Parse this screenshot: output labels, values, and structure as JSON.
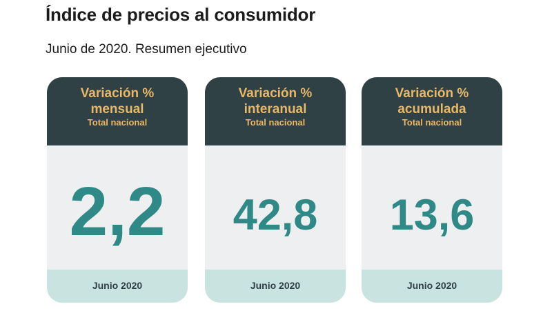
{
  "title": "Índice de precios al consumidor",
  "subtitle": "Junio de 2020. Resumen ejecutivo",
  "cards": [
    {
      "title_line1": "Variación %",
      "title_line2": "mensual",
      "scope": "Total nacional",
      "value": "2,2",
      "period": "Junio 2020"
    },
    {
      "title_line1": "Variación %",
      "title_line2": "interanual",
      "scope": "Total nacional",
      "value": "42,8",
      "period": "Junio 2020"
    },
    {
      "title_line1": "Variación %",
      "title_line2": "acumulada",
      "scope": "Total nacional",
      "value": "13,6",
      "period": "Junio 2020"
    }
  ],
  "colors": {
    "header_bg": "#2f4144",
    "header_text": "#e8b767",
    "value_text": "#2f8a87",
    "card_bg": "#eeeff0",
    "footer_bg": "#c9e3e1"
  }
}
